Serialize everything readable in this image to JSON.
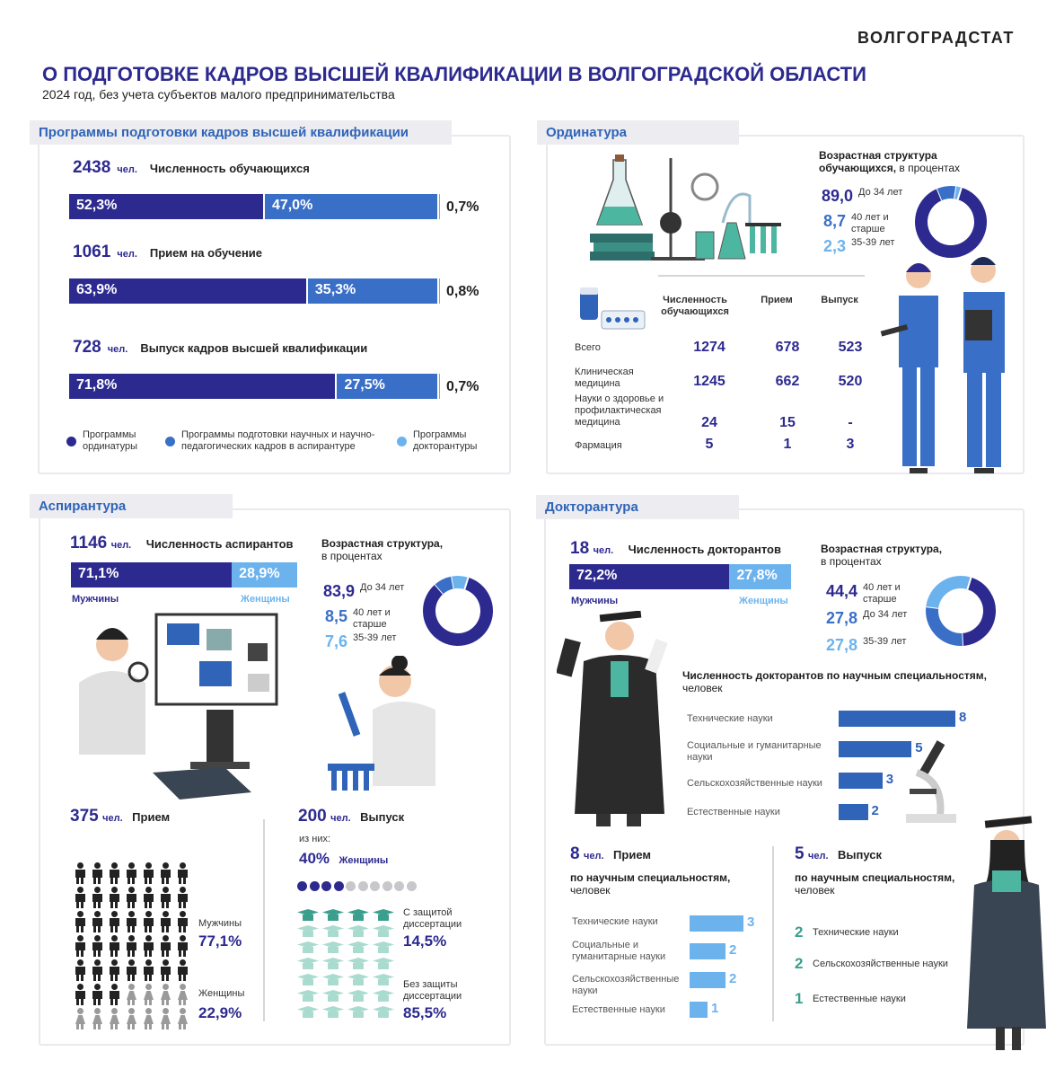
{
  "header": {
    "brand": "ВОЛГОГРАДСТАТ",
    "title": "О ПОДГОТОВКЕ КАДРОВ ВЫСШЕЙ КВАЛИФИКАЦИИ В ВОЛГОГРАДСКОЙ ОБЛАСТИ",
    "subtitle": "2024 год, без учета субъектов малого предпринимательства"
  },
  "colors": {
    "dark": "#2d2a8f",
    "mid": "#3a6fc8",
    "light": "#6cb3ee",
    "gray": "#c8c8cc"
  },
  "programs": {
    "tab": "Программы подготовки кадров высшей квалификации",
    "unit": "чел.",
    "rows": [
      {
        "count": "2438",
        "label": "Численность обучающихся",
        "values": [
          "52,3%",
          "47,0%",
          "0,7%"
        ],
        "fractions": [
          52.3,
          47.0,
          0.7
        ]
      },
      {
        "count": "1061",
        "label": "Прием на обучение",
        "values": [
          "63,9%",
          "35,3%",
          "0,8%"
        ],
        "fractions": [
          63.9,
          35.3,
          0.8
        ]
      },
      {
        "count": "728",
        "label": "Выпуск кадров высшей квалификации",
        "values": [
          "71,8%",
          "27,5%",
          "0,7%"
        ],
        "fractions": [
          71.8,
          27.5,
          0.7
        ]
      }
    ],
    "legend": [
      "Программы ординатуры",
      "Программы подготовки научных и научно-педагогических кадров в аспирантуре",
      "Программы докторантуры"
    ]
  },
  "ordinatura": {
    "tab": "Ординатура",
    "age_title": "Возрастная структура",
    "age_title2": "обучающихся,",
    "age_title3": "в процентах",
    "ages": [
      {
        "value": "89,0",
        "label": "До 34 лет"
      },
      {
        "value": "8,7",
        "label": "40 лет и старше"
      },
      {
        "value": "2,3",
        "label": "35-39 лет"
      }
    ],
    "table_headers": [
      "Численность обучающихся",
      "Прием",
      "Выпуск"
    ],
    "table_rows": [
      {
        "name": "Всего",
        "values": [
          "1274",
          "678",
          "523"
        ]
      },
      {
        "name": "Клиническая медицина",
        "values": [
          "1245",
          "662",
          "520"
        ]
      },
      {
        "name": "Науки о здоровье и профилактическая медицина",
        "values": [
          "24",
          "15",
          "-"
        ]
      },
      {
        "name": "Фармация",
        "values": [
          "5",
          "1",
          "3"
        ]
      }
    ]
  },
  "aspirantura": {
    "tab": "Аспирантура",
    "count": "1146",
    "unit": "чел.",
    "label": "Численность аспирантов",
    "men": "71,1%",
    "women": "28,9%",
    "men_label": "Мужчины",
    "women_label": "Женщины",
    "age_title": "Возрастная структура,",
    "age_title2": "в процентах",
    "ages": [
      {
        "value": "83,9",
        "label": "До 34 лет"
      },
      {
        "value": "8,5",
        "label": "40 лет и старше"
      },
      {
        "value": "7,6",
        "label": "35-39 лет"
      }
    ],
    "intake_count": "375",
    "intake_label": "Прием",
    "intake_men_label": "Мужчины",
    "intake_men": "77,1%",
    "intake_women_label": "Женщины",
    "intake_women": "22,9%",
    "grad_count": "200",
    "grad_label": "Выпуск",
    "of_them": "из них:",
    "grad_women_pct": "40%",
    "grad_women_label": "Женщины",
    "grad_women_dots": 4,
    "with_defense_label": "С защитой диссертации",
    "with_defense": "14,5%",
    "without_defense_label": "Без защиты диссертации",
    "without_defense": "85,5%"
  },
  "doktorantura": {
    "tab": "Докторантура",
    "count": "18",
    "unit": "чел.",
    "label": "Численность докторантов",
    "men": "72,2%",
    "women": "27,8%",
    "men_label": "Мужчины",
    "women_label": "Женщины",
    "age_title": "Возрастная структура,",
    "age_title2": "в процентах",
    "ages": [
      {
        "value": "44,4",
        "label": "40 лет и старше"
      },
      {
        "value": "27,8",
        "label": "До 34 лет"
      },
      {
        "value": "27,8",
        "label": "35-39 лет"
      }
    ],
    "spec_title": "Численность докторантов по научным специальностям,",
    "spec_title2": "человек",
    "intake_count": "8",
    "intake_label": "Прием",
    "intake_sub": "по научным специальностям,",
    "intake_sub2": "человек",
    "grad_count": "5",
    "grad_label": "Выпуск",
    "grad_sub": "по научным специальностям,",
    "grad_sub2": "человек",
    "grad_items": [
      {
        "value": "2",
        "label": "Технические науки"
      },
      {
        "value": "2",
        "label": "Сельскохозяйственные науки"
      },
      {
        "value": "1",
        "label": "Естественные науки"
      }
    ]
  },
  "chart_data": [
    {
      "type": "bar",
      "title": "Численность обучающихся",
      "categories": [
        "Программы ординатуры",
        "Программы подготовки научных и научно-педагогических кадров в аспирантуре",
        "Программы докторантуры"
      ],
      "values": [
        52.3,
        47.0,
        0.7
      ]
    },
    {
      "type": "bar",
      "title": "Прием на обучение",
      "categories": [
        "Программы ординатуры",
        "Программы подготовки научных и научно-педагогических кадров в аспирантуре",
        "Программы докторантуры"
      ],
      "values": [
        63.9,
        35.3,
        0.8
      ]
    },
    {
      "type": "bar",
      "title": "Выпуск кадров высшей квалификации",
      "categories": [
        "Программы ординатуры",
        "Программы подготовки научных и научно-педагогических кадров в аспирантуре",
        "Программы докторантуры"
      ],
      "values": [
        71.8,
        27.5,
        0.7
      ]
    },
    {
      "type": "pie",
      "title": "Возрастная структура обучающихся, в процентах",
      "categories": [
        "До 34 лет",
        "40 лет и старше",
        "35-39 лет"
      ],
      "values": [
        89.0,
        8.7,
        2.3
      ]
    },
    {
      "type": "pie",
      "title": "Возрастная структура, в процентах",
      "categories": [
        "До 34 лет",
        "40 лет и старше",
        "35-39 лет"
      ],
      "values": [
        83.9,
        8.5,
        7.6
      ]
    },
    {
      "type": "pie",
      "title": "Возрастная структура, в процентах",
      "categories": [
        "40 лет и старше",
        "До 34 лет",
        "35-39 лет"
      ],
      "values": [
        44.4,
        27.8,
        27.8
      ]
    },
    {
      "type": "bar",
      "title": "Численность докторантов по научным специальностям, человек",
      "categories": [
        "Технические науки",
        "Социальные и гуманитарные науки",
        "Сельскохозяйственные науки",
        "Естественные науки"
      ],
      "values": [
        8,
        5,
        3,
        2
      ]
    },
    {
      "type": "bar",
      "title": "Прием по научным специальностям, человек",
      "categories": [
        "Технические науки",
        "Социальные и гуманитарные науки",
        "Сельскохозяйственные науки",
        "Естественные науки"
      ],
      "values": [
        3,
        2,
        2,
        1
      ]
    }
  ]
}
